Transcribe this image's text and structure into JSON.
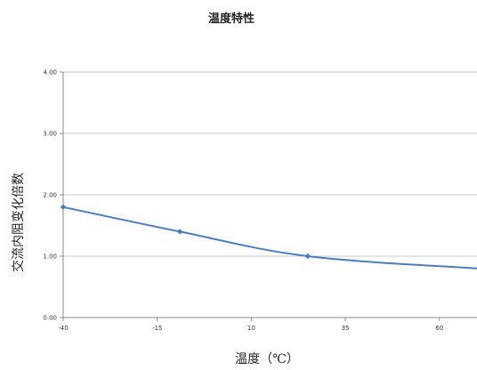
{
  "chart_data": {
    "type": "line",
    "title": "温度特性",
    "xlabel": "温度（℃）",
    "ylabel": "交流内阻变化倍数",
    "x_ticks": [
      -40,
      -15,
      10,
      35,
      60
    ],
    "x_tick_labels": [
      "-40",
      "-15",
      "10",
      "35",
      "60"
    ],
    "xlim": [
      -40,
      70
    ],
    "y_ticks": [
      0,
      1,
      2,
      3,
      4
    ],
    "y_tick_labels": [
      "0.00",
      "1.00",
      "2.00",
      "3.00",
      "4.00"
    ],
    "ylim": [
      0,
      4
    ],
    "grid": true,
    "colors": {
      "series": "#4a7ebb",
      "grid": "#c8c8c8",
      "axis": "#888888"
    },
    "series": [
      {
        "x": [
          -40,
          -9,
          25,
          70
        ],
        "y": [
          1.8,
          1.4,
          1.0,
          0.8
        ],
        "markers": [
          true,
          true,
          true,
          false
        ]
      }
    ]
  }
}
